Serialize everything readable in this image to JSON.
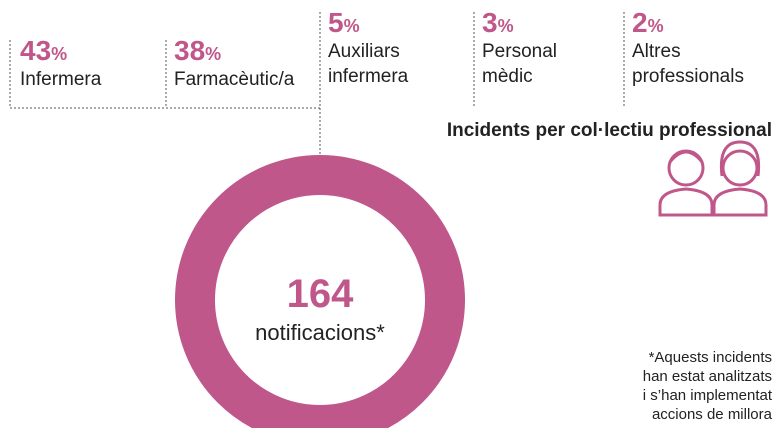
{
  "items": [
    {
      "value": 43,
      "unit": "%",
      "label": [
        "Infermera"
      ]
    },
    {
      "value": 38,
      "unit": "%",
      "label": [
        "Farmacèutic/a"
      ]
    },
    {
      "value": 5,
      "unit": "%",
      "label": [
        "Auxiliars",
        "infermera"
      ]
    },
    {
      "value": 3,
      "unit": "%",
      "label": [
        "Personal",
        "mèdic"
      ]
    },
    {
      "value": 2,
      "unit": "%",
      "label": [
        "Altres",
        "professionals"
      ]
    }
  ],
  "heading": "Incidents per col·lectiu professional",
  "total": {
    "value": 164,
    "label": "notificacions*"
  },
  "footnote": [
    "*Aquests incidents",
    "han estat analitzats",
    "i s’han implementat",
    "accions de millora"
  ]
}
